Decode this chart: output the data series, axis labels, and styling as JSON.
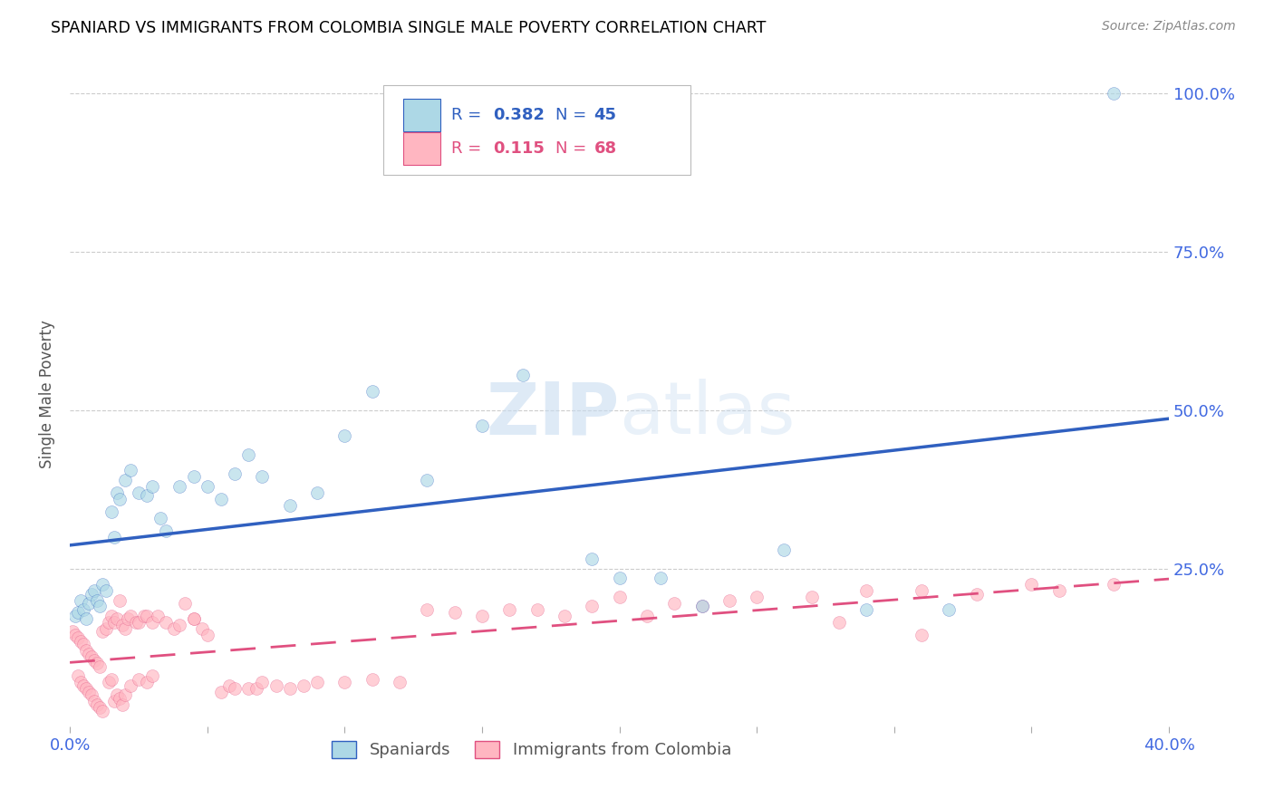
{
  "title": "SPANIARD VS IMMIGRANTS FROM COLOMBIA SINGLE MALE POVERTY CORRELATION CHART",
  "source": "Source: ZipAtlas.com",
  "ylabel": "Single Male Poverty",
  "yticks": [
    0.0,
    0.25,
    0.5,
    0.75,
    1.0
  ],
  "ytick_labels": [
    "",
    "25.0%",
    "50.0%",
    "75.0%",
    "100.0%"
  ],
  "xlim": [
    0.0,
    0.4
  ],
  "ylim": [
    0.0,
    1.05
  ],
  "spaniards_color": "#ADD8E6",
  "colombia_color": "#FFB6C1",
  "spaniards_line_color": "#3060C0",
  "colombia_line_color": "#E05080",
  "spaniards_R": 0.382,
  "spaniards_N": 45,
  "colombia_R": 0.115,
  "colombia_N": 68,
  "spaniards_x": [
    0.002,
    0.003,
    0.004,
    0.005,
    0.006,
    0.007,
    0.008,
    0.009,
    0.01,
    0.011,
    0.012,
    0.013,
    0.015,
    0.016,
    0.017,
    0.018,
    0.02,
    0.022,
    0.025,
    0.028,
    0.03,
    0.033,
    0.035,
    0.04,
    0.045,
    0.05,
    0.055,
    0.06,
    0.065,
    0.07,
    0.08,
    0.09,
    0.1,
    0.11,
    0.13,
    0.15,
    0.165,
    0.19,
    0.2,
    0.215,
    0.23,
    0.26,
    0.29,
    0.32,
    0.38
  ],
  "spaniards_y": [
    0.175,
    0.18,
    0.2,
    0.185,
    0.17,
    0.195,
    0.21,
    0.215,
    0.2,
    0.19,
    0.225,
    0.215,
    0.34,
    0.3,
    0.37,
    0.36,
    0.39,
    0.405,
    0.37,
    0.365,
    0.38,
    0.33,
    0.31,
    0.38,
    0.395,
    0.38,
    0.36,
    0.4,
    0.43,
    0.395,
    0.35,
    0.37,
    0.46,
    0.53,
    0.39,
    0.475,
    0.555,
    0.265,
    0.235,
    0.235,
    0.19,
    0.28,
    0.185,
    0.185,
    1.0
  ],
  "colombia_x": [
    0.001,
    0.002,
    0.003,
    0.004,
    0.005,
    0.006,
    0.007,
    0.008,
    0.009,
    0.01,
    0.011,
    0.012,
    0.013,
    0.014,
    0.015,
    0.016,
    0.017,
    0.018,
    0.019,
    0.02,
    0.021,
    0.022,
    0.024,
    0.025,
    0.027,
    0.028,
    0.03,
    0.032,
    0.035,
    0.038,
    0.04,
    0.042,
    0.045,
    0.048,
    0.05,
    0.055,
    0.058,
    0.06,
    0.065,
    0.068,
    0.07,
    0.075,
    0.08,
    0.085,
    0.09,
    0.1,
    0.11,
    0.12,
    0.13,
    0.14,
    0.15,
    0.16,
    0.17,
    0.18,
    0.19,
    0.2,
    0.21,
    0.22,
    0.23,
    0.24,
    0.25,
    0.27,
    0.29,
    0.31,
    0.33,
    0.35,
    0.36,
    0.38
  ],
  "colombia_y": [
    0.15,
    0.145,
    0.14,
    0.135,
    0.13,
    0.12,
    0.115,
    0.11,
    0.105,
    0.1,
    0.095,
    0.15,
    0.155,
    0.165,
    0.175,
    0.165,
    0.17,
    0.2,
    0.16,
    0.155,
    0.17,
    0.175,
    0.165,
    0.165,
    0.175,
    0.175,
    0.165,
    0.175,
    0.165,
    0.155,
    0.16,
    0.195,
    0.17,
    0.155,
    0.145,
    0.055,
    0.065,
    0.06,
    0.06,
    0.06,
    0.07,
    0.065,
    0.06,
    0.065,
    0.07,
    0.07,
    0.075,
    0.07,
    0.185,
    0.18,
    0.175,
    0.185,
    0.185,
    0.175,
    0.19,
    0.205,
    0.175,
    0.195,
    0.19,
    0.2,
    0.205,
    0.205,
    0.215,
    0.215,
    0.21,
    0.225,
    0.215,
    0.225
  ],
  "colombia_extra_x": [
    0.003,
    0.004,
    0.005,
    0.006,
    0.007,
    0.008,
    0.009,
    0.01,
    0.011,
    0.012,
    0.014,
    0.015,
    0.016,
    0.017,
    0.018,
    0.019,
    0.02,
    0.022,
    0.025,
    0.028,
    0.03,
    0.045,
    0.28,
    0.31
  ],
  "colombia_extra_y": [
    0.08,
    0.07,
    0.065,
    0.06,
    0.055,
    0.05,
    0.04,
    0.035,
    0.03,
    0.025,
    0.07,
    0.075,
    0.04,
    0.05,
    0.045,
    0.035,
    0.05,
    0.065,
    0.075,
    0.07,
    0.08,
    0.17,
    0.165,
    0.145
  ]
}
